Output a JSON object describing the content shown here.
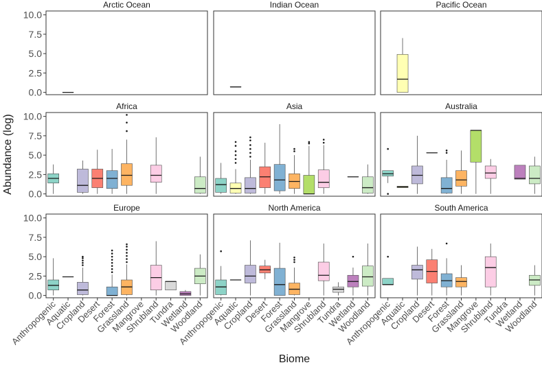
{
  "chart_data": {
    "type": "boxplot",
    "layout": "facet-grid 3x3",
    "xlabel": "Biome",
    "ylabel": "Abundance (log)",
    "ylim": [
      -0.3,
      10.5
    ],
    "yticks": [
      "0.0",
      "2.5",
      "5.0",
      "7.5",
      "10.0"
    ],
    "ytick_values": [
      0,
      2.5,
      5,
      7.5,
      10
    ],
    "biomes": [
      "Anthropogenic",
      "Aquatic",
      "Cropland",
      "Desert",
      "Forest",
      "Grassland",
      "Mangrove",
      "Shrubland",
      "Tundra",
      "Wetland",
      "Woodland"
    ],
    "colors": {
      "Anthropogenic": "#8DD3C7",
      "Aquatic": "#FFFFB3",
      "Cropland": "#BEBADA",
      "Desert": "#FB8072",
      "Forest": "#80B1D3",
      "Grassland": "#FDB462",
      "Mangrove": "#B3DE69",
      "Shrubland": "#FCCDE5",
      "Tundra": "#D9D9D9",
      "Wetland": "#BC80BD",
      "Woodland": "#CCEBC5"
    },
    "facets": [
      {
        "name": "Arctic Ocean",
        "boxes": [
          {
            "biome": "Aquatic",
            "q1": 0.0,
            "median": 0.0,
            "q3": 0.0,
            "lo": 0.0,
            "hi": 0.0,
            "outliers": []
          }
        ]
      },
      {
        "name": "Indian Ocean",
        "boxes": [
          {
            "biome": "Aquatic",
            "q1": 0.7,
            "median": 0.7,
            "q3": 0.7,
            "lo": 0.7,
            "hi": 0.7,
            "outliers": []
          }
        ]
      },
      {
        "name": "Pacific Ocean",
        "boxes": [
          {
            "biome": "Aquatic",
            "q1": 0.0,
            "median": 1.7,
            "q3": 4.9,
            "lo": 0.0,
            "hi": 7.0,
            "outliers": []
          }
        ]
      },
      {
        "name": "Africa",
        "boxes": [
          {
            "biome": "Anthropogenic",
            "q1": 1.4,
            "median": 2.0,
            "q3": 2.6,
            "lo": 0.0,
            "hi": 3.8,
            "outliers": []
          },
          {
            "biome": "Cropland",
            "q1": 0.2,
            "median": 1.1,
            "q3": 3.2,
            "lo": 0.0,
            "hi": 4.3,
            "outliers": []
          },
          {
            "biome": "Desert",
            "q1": 0.8,
            "median": 2.0,
            "q3": 3.2,
            "lo": 0.0,
            "hi": 5.7,
            "outliers": []
          },
          {
            "biome": "Forest",
            "q1": 0.7,
            "median": 2.0,
            "q3": 3.0,
            "lo": 0.0,
            "hi": 5.8,
            "outliers": []
          },
          {
            "biome": "Grassland",
            "q1": 1.1,
            "median": 2.4,
            "q3": 3.9,
            "lo": 0.0,
            "hi": 7.0,
            "outliers": [
              8.1,
              9.2,
              10.2
            ]
          },
          {
            "biome": "Shrubland",
            "q1": 1.5,
            "median": 2.4,
            "q3": 3.7,
            "lo": 0.0,
            "hi": 7.3,
            "outliers": []
          },
          {
            "biome": "Woodland",
            "q1": 0.1,
            "median": 0.7,
            "q3": 2.2,
            "lo": 0.0,
            "hi": 4.8,
            "outliers": []
          }
        ]
      },
      {
        "name": "Asia",
        "boxes": [
          {
            "biome": "Anthropogenic",
            "q1": 0.2,
            "median": 1.2,
            "q3": 2.0,
            "lo": 0.0,
            "hi": 4.0,
            "outliers": []
          },
          {
            "biome": "Aquatic",
            "q1": 0.1,
            "median": 0.7,
            "q3": 1.4,
            "lo": 0.0,
            "hi": 3.2,
            "outliers": [
              4.0,
              4.5,
              5.0,
              5.5,
              6.2,
              6.7
            ]
          },
          {
            "biome": "Cropland",
            "q1": 0.1,
            "median": 0.7,
            "q3": 2.1,
            "lo": 0.0,
            "hi": 4.4,
            "outliers": [
              4.8,
              5.3,
              5.8,
              6.3,
              6.9,
              7.3
            ]
          },
          {
            "biome": "Desert",
            "q1": 0.8,
            "median": 2.2,
            "q3": 3.5,
            "lo": 0.0,
            "hi": 6.6,
            "outliers": []
          },
          {
            "biome": "Forest",
            "q1": 0.4,
            "median": 1.8,
            "q3": 3.8,
            "lo": 0.0,
            "hi": 9.0,
            "outliers": []
          },
          {
            "biome": "Grassland",
            "q1": 0.7,
            "median": 1.6,
            "q3": 2.6,
            "lo": 0.0,
            "hi": 5.0,
            "outliers": [
              5.5,
              5.8
            ]
          },
          {
            "biome": "Mangrove",
            "q1": 0.0,
            "median": 0.0,
            "q3": 2.4,
            "lo": 0.0,
            "hi": 6.2,
            "outliers": [
              6.5,
              6.7
            ]
          },
          {
            "biome": "Shrubland",
            "q1": 0.8,
            "median": 1.5,
            "q3": 3.1,
            "lo": 0.0,
            "hi": 6.3,
            "outliers": [
              6.6,
              7.0
            ]
          },
          {
            "biome": "Wetland",
            "q1": 2.2,
            "median": 2.2,
            "q3": 2.2,
            "lo": 2.2,
            "hi": 2.2,
            "outliers": []
          },
          {
            "biome": "Woodland",
            "q1": 0.1,
            "median": 0.8,
            "q3": 2.2,
            "lo": 0.0,
            "hi": 3.8,
            "outliers": []
          }
        ]
      },
      {
        "name": "Australia",
        "boxes": [
          {
            "biome": "Anthropogenic",
            "q1": 2.3,
            "median": 2.6,
            "q3": 3.0,
            "lo": 1.4,
            "hi": 3.0,
            "outliers": [
              0.0,
              5.8
            ]
          },
          {
            "biome": "Aquatic",
            "q1": 0.8,
            "median": 0.9,
            "q3": 1.0,
            "lo": 0.8,
            "hi": 1.0,
            "outliers": []
          },
          {
            "biome": "Cropland",
            "q1": 1.3,
            "median": 2.4,
            "q3": 3.6,
            "lo": 0.0,
            "hi": 7.5,
            "outliers": []
          },
          {
            "biome": "Desert",
            "q1": 5.3,
            "median": 5.3,
            "q3": 5.3,
            "lo": 5.3,
            "hi": 5.3,
            "outliers": []
          },
          {
            "biome": "Forest",
            "q1": 0.1,
            "median": 0.7,
            "q3": 2.1,
            "lo": 0.0,
            "hi": 4.4,
            "outliers": [
              5.3,
              5.6
            ]
          },
          {
            "biome": "Grassland",
            "q1": 1.0,
            "median": 1.8,
            "q3": 3.0,
            "lo": 0.0,
            "hi": 5.6,
            "outliers": []
          },
          {
            "biome": "Mangrove",
            "q1": 4.1,
            "median": 8.2,
            "q3": 8.2,
            "lo": 0.0,
            "hi": 8.2,
            "outliers": []
          },
          {
            "biome": "Shrubland",
            "q1": 2.0,
            "median": 2.7,
            "q3": 3.6,
            "lo": 0.0,
            "hi": 4.5,
            "outliers": []
          },
          {
            "biome": "Wetland",
            "q1": 1.9,
            "median": 2.0,
            "q3": 3.7,
            "lo": 1.9,
            "hi": 3.7,
            "outliers": []
          },
          {
            "biome": "Woodland",
            "q1": 1.3,
            "median": 2.0,
            "q3": 3.6,
            "lo": 0.0,
            "hi": 4.8,
            "outliers": []
          }
        ]
      },
      {
        "name": "Europe",
        "boxes": [
          {
            "biome": "Anthropogenic",
            "q1": 0.7,
            "median": 1.3,
            "q3": 2.0,
            "lo": 0.0,
            "hi": 4.8,
            "outliers": []
          },
          {
            "biome": "Aquatic",
            "q1": 2.4,
            "median": 2.4,
            "q3": 2.4,
            "lo": 2.4,
            "hi": 2.4,
            "outliers": []
          },
          {
            "biome": "Cropland",
            "q1": 0.1,
            "median": 0.7,
            "q3": 1.7,
            "lo": 0.0,
            "hi": 3.6,
            "outliers": [
              3.9,
              4.2,
              4.5,
              4.8,
              5.0
            ]
          },
          {
            "biome": "Forest",
            "q1": 0.0,
            "median": 0.0,
            "q3": 1.1,
            "lo": 0.0,
            "hi": 2.7,
            "outliers": [
              3.0,
              3.4,
              3.8,
              4.2,
              4.6,
              5.0,
              5.4,
              5.8
            ]
          },
          {
            "biome": "Grassland",
            "q1": 0.1,
            "median": 1.1,
            "q3": 2.0,
            "lo": 0.0,
            "hi": 4.0,
            "outliers": [
              4.3,
              4.7,
              5.1,
              5.5,
              5.9,
              6.3,
              6.6
            ]
          },
          {
            "biome": "Shrubland",
            "q1": 0.7,
            "median": 2.3,
            "q3": 3.9,
            "lo": 0.0,
            "hi": 7.0,
            "outliers": []
          },
          {
            "biome": "Tundra",
            "q1": 0.7,
            "median": 1.8,
            "q3": 1.8,
            "lo": 0.7,
            "hi": 1.8,
            "outliers": []
          },
          {
            "biome": "Wetland",
            "q1": 0.0,
            "median": 0.2,
            "q3": 0.5,
            "lo": 0.0,
            "hi": 0.7,
            "outliers": []
          },
          {
            "biome": "Woodland",
            "q1": 1.5,
            "median": 2.5,
            "q3": 3.5,
            "lo": 0.0,
            "hi": 5.3,
            "outliers": []
          }
        ]
      },
      {
        "name": "North America",
        "boxes": [
          {
            "biome": "Anthropogenic",
            "q1": 0.1,
            "median": 1.1,
            "q3": 2.0,
            "lo": 0.0,
            "hi": 3.8,
            "outliers": [
              5.7
            ]
          },
          {
            "biome": "Aquatic",
            "q1": 2.0,
            "median": 2.0,
            "q3": 2.0,
            "lo": 2.0,
            "hi": 2.0,
            "outliers": []
          },
          {
            "biome": "Cropland",
            "q1": 1.6,
            "median": 2.5,
            "q3": 3.9,
            "lo": 0.0,
            "hi": 7.1,
            "outliers": []
          },
          {
            "biome": "Desert",
            "q1": 2.9,
            "median": 3.3,
            "q3": 3.8,
            "lo": 2.1,
            "hi": 4.6,
            "outliers": []
          },
          {
            "biome": "Forest",
            "q1": 0.0,
            "median": 1.4,
            "q3": 3.5,
            "lo": 0.0,
            "hi": 6.8,
            "outliers": []
          },
          {
            "biome": "Grassland",
            "q1": 0.1,
            "median": 0.8,
            "q3": 1.6,
            "lo": 0.0,
            "hi": 3.6,
            "outliers": [
              4.3,
              4.6,
              4.9
            ]
          },
          {
            "biome": "Shrubland",
            "q1": 1.9,
            "median": 2.6,
            "q3": 4.3,
            "lo": 0.0,
            "hi": 6.7,
            "outliers": []
          },
          {
            "biome": "Tundra",
            "q1": 0.4,
            "median": 0.8,
            "q3": 1.1,
            "lo": 0.0,
            "hi": 1.7,
            "outliers": []
          },
          {
            "biome": "Wetland",
            "q1": 1.1,
            "median": 1.8,
            "q3": 2.6,
            "lo": 0.0,
            "hi": 3.6,
            "outliers": [
              5.0
            ]
          },
          {
            "biome": "Woodland",
            "q1": 1.2,
            "median": 2.4,
            "q3": 3.8,
            "lo": 0.0,
            "hi": 6.7,
            "outliers": []
          }
        ]
      },
      {
        "name": "South America",
        "boxes": [
          {
            "biome": "Anthropogenic",
            "q1": 1.4,
            "median": 1.4,
            "q3": 2.2,
            "lo": 1.4,
            "hi": 2.2,
            "outliers": [
              5.0
            ]
          },
          {
            "biome": "Cropland",
            "q1": 2.1,
            "median": 3.3,
            "q3": 3.9,
            "lo": 0.0,
            "hi": 6.3,
            "outliers": []
          },
          {
            "biome": "Desert",
            "q1": 1.6,
            "median": 3.1,
            "q3": 4.6,
            "lo": 0.0,
            "hi": 6.0,
            "outliers": []
          },
          {
            "biome": "Forest",
            "q1": 1.1,
            "median": 1.9,
            "q3": 2.8,
            "lo": 0.0,
            "hi": 4.8,
            "outliers": [
              6.7
            ]
          },
          {
            "biome": "Grassland",
            "q1": 1.1,
            "median": 1.8,
            "q3": 2.3,
            "lo": 0.0,
            "hi": 3.9,
            "outliers": []
          },
          {
            "biome": "Shrubland",
            "q1": 1.1,
            "median": 3.6,
            "q3": 5.0,
            "lo": 0.0,
            "hi": 6.7,
            "outliers": []
          },
          {
            "biome": "Woodland",
            "q1": 1.3,
            "median": 2.0,
            "q3": 2.6,
            "lo": 0.0,
            "hi": 3.9,
            "outliers": []
          }
        ]
      }
    ]
  }
}
